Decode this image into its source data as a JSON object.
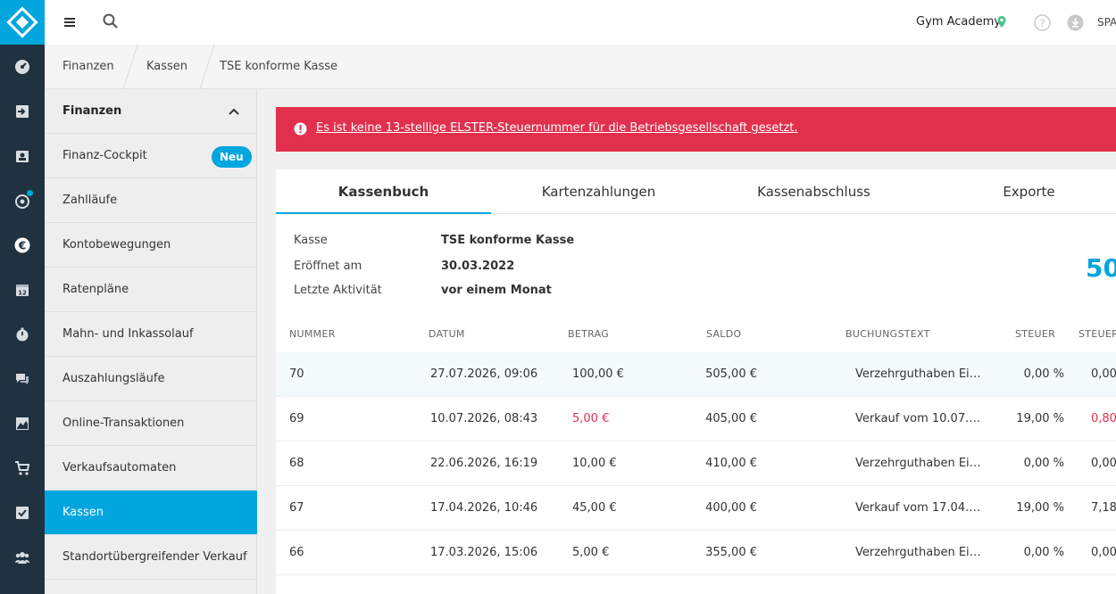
{
  "topbar": {
    "studio": "Gym Academy",
    "lang": "SPA"
  },
  "breadcrumb": [
    "Finanzen",
    "Kassen",
    "TSE konforme Kasse"
  ],
  "sidebar": {
    "header": "Finanzen",
    "items": [
      {
        "label": "Finanz-Cockpit",
        "badge": "Neu"
      },
      {
        "label": "Zahlläufe"
      },
      {
        "label": "Kontobewegungen"
      },
      {
        "label": "Ratenpläne"
      },
      {
        "label": "Mahn- und Inkassolauf"
      },
      {
        "label": "Auszahlungsläufe"
      },
      {
        "label": "Online-Transaktionen"
      },
      {
        "label": "Verkaufsautomaten"
      },
      {
        "label": "Kassen",
        "active": true
      },
      {
        "label": "Standortübergreifender Verkauf"
      }
    ]
  },
  "alert": {
    "text": "Es ist keine 13-stellige ELSTER-Steuernummer für die Betriebsgesellschaft gesetzt."
  },
  "tabs": [
    "Kassenbuch",
    "Kartenzahlungen",
    "Kassenabschluss",
    "Exporte"
  ],
  "info": {
    "kasse_label": "Kasse",
    "kasse_value": "TSE konforme Kasse",
    "eroeffnet_label": "Eröffnet am",
    "eroeffnet_value": "30.03.2022",
    "aktivitaet_label": "Letzte Aktivität",
    "aktivitaet_value": "vor einem Monat",
    "balance_partial": "50"
  },
  "table": {
    "headers": [
      "NUMMER",
      "DATUM",
      "BETRAG",
      "SALDO",
      "BUCHUNGSTEXT",
      "STEUER",
      "STEUER"
    ],
    "rows": [
      {
        "nummer": "70",
        "datum": "27.07.2026, 09:06",
        "betrag": "100,00 €",
        "saldo": "505,00 €",
        "text": "Verzehrguthaben Ei…",
        "steuer": "0,00 %",
        "steuer2": "0,00",
        "neg": false
      },
      {
        "nummer": "69",
        "datum": "10.07.2026, 08:43",
        "betrag": "5,00 €",
        "saldo": "405,00 €",
        "text": "Verkauf vom 10.07.…",
        "steuer": "19,00 %",
        "steuer2": "0,80",
        "neg": true
      },
      {
        "nummer": "68",
        "datum": "22.06.2026, 16:19",
        "betrag": "10,00 €",
        "saldo": "410,00 €",
        "text": "Verzehrguthaben Ei…",
        "steuer": "0,00 %",
        "steuer2": "0,00",
        "neg": false
      },
      {
        "nummer": "67",
        "datum": "17.04.2026, 10:46",
        "betrag": "45,00 €",
        "saldo": "400,00 €",
        "text": "Verkauf vom 17.04.…",
        "steuer": "19,00 %",
        "steuer2": "7,18",
        "neg": false
      },
      {
        "nummer": "66",
        "datum": "17.03.2026, 15:06",
        "betrag": "5,00 €",
        "saldo": "355,00 €",
        "text": "Verzehrguthaben Ei…",
        "steuer": "0,00 %",
        "steuer2": "0,00",
        "neg": false
      }
    ]
  },
  "colors": {
    "accent": "#00a6dd",
    "rail": "#203140",
    "alert": "#e0304e",
    "location_pin": "#4cc38a"
  }
}
